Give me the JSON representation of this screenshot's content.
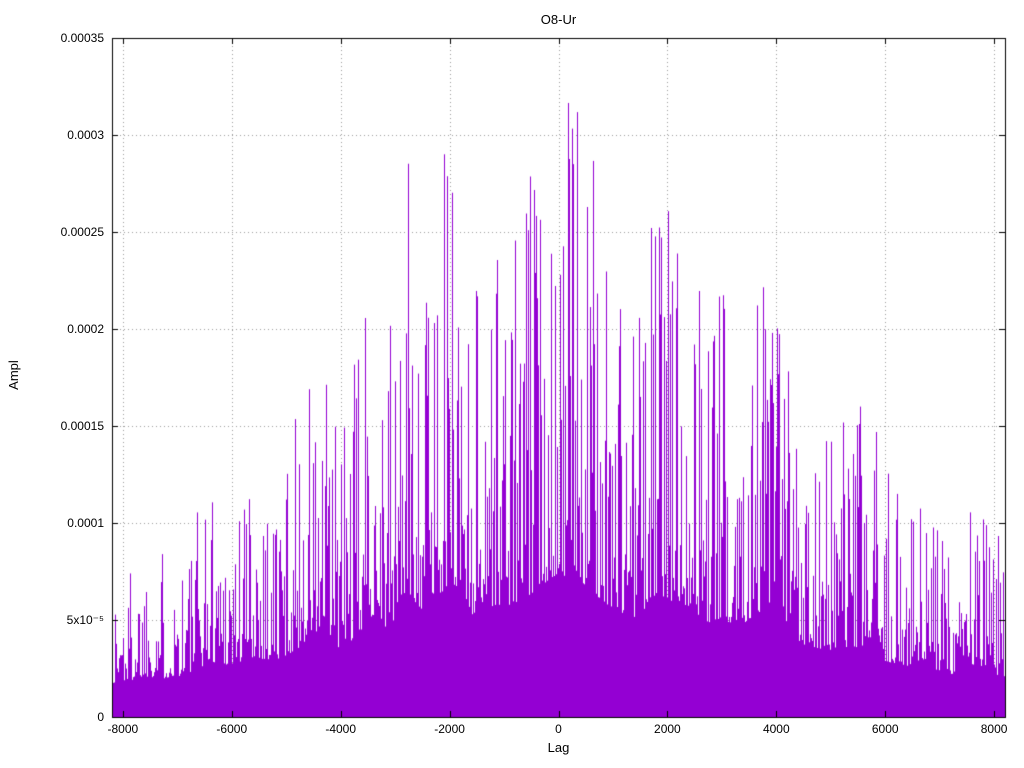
{
  "chart_data": {
    "type": "line",
    "subtype": "impulse-spectrum",
    "title": "O8-Ur",
    "xlabel": "Lag",
    "ylabel": "Ampl",
    "xlim": [
      -8200,
      8200
    ],
    "ylim": [
      0,
      0.00035
    ],
    "grid": true,
    "legend": "none",
    "series_color": "#9400d3",
    "grid_color": "#9a9a9a",
    "axis_color": "#000000",
    "x_ticks": [
      -8000,
      -6000,
      -4000,
      -2000,
      0,
      2000,
      4000,
      6000,
      8000
    ],
    "x_tick_labels": [
      "-8000",
      "-6000",
      "-4000",
      "-2000",
      "0",
      "2000",
      "4000",
      "6000",
      "8000"
    ],
    "y_ticks": [
      0,
      5e-05,
      0.0001,
      0.00015,
      0.0002,
      0.00025,
      0.0003,
      0.00035
    ],
    "y_tick_labels": [
      "0",
      "5x10⁻⁵",
      "0.0001",
      "0.00015",
      "0.0002",
      "0.00025",
      "0.0003",
      "0.00035"
    ],
    "peak_value": 0.000336,
    "peak_lag": 300,
    "noise_seed": 1337,
    "envelope_x": [
      -8200,
      -8000,
      -7600,
      -7200,
      -6800,
      -6400,
      -6000,
      -5600,
      -5200,
      -4800,
      -4600,
      -4300,
      -4000,
      -3700,
      -3400,
      -3100,
      -2800,
      -2500,
      -2200,
      -1900,
      -1600,
      -1300,
      -1000,
      -700,
      -400,
      -100,
      100,
      300,
      600,
      900,
      1200,
      1500,
      1800,
      2100,
      2400,
      2700,
      3000,
      3300,
      3600,
      3900,
      4200,
      4500,
      4800,
      5100,
      5400,
      5700,
      6000,
      6400,
      6800,
      7200,
      7600,
      8000,
      8200
    ],
    "envelope_y": [
      7.5e-05,
      8e-05,
      9.5e-05,
      9e-05,
      0.0001,
      0.00013,
      0.00012,
      0.00014,
      0.00013,
      0.00016,
      0.000185,
      0.00018,
      0.00016,
      0.00019,
      0.00024,
      0.0002,
      0.00029,
      0.00025,
      0.00029,
      0.00031,
      0.00024,
      0.00026,
      0.00026,
      0.00027,
      0.0003,
      0.00033,
      0.00033,
      0.000336,
      0.00029,
      0.00026,
      0.00024,
      0.00023,
      0.00029,
      0.00027,
      0.00026,
      0.00022,
      0.00023,
      0.00021,
      0.00024,
      0.00026,
      0.0002,
      0.00017,
      0.00016,
      0.00015,
      0.00016,
      0.00016,
      0.00013,
      0.00012,
      0.00011,
      0.0001,
      0.00012,
      0.0001,
      9.5e-05
    ],
    "note": "Dense impulse plot: amplitude vs lag, noisy mass from 0 up to envelope, peaking near lag 0"
  }
}
